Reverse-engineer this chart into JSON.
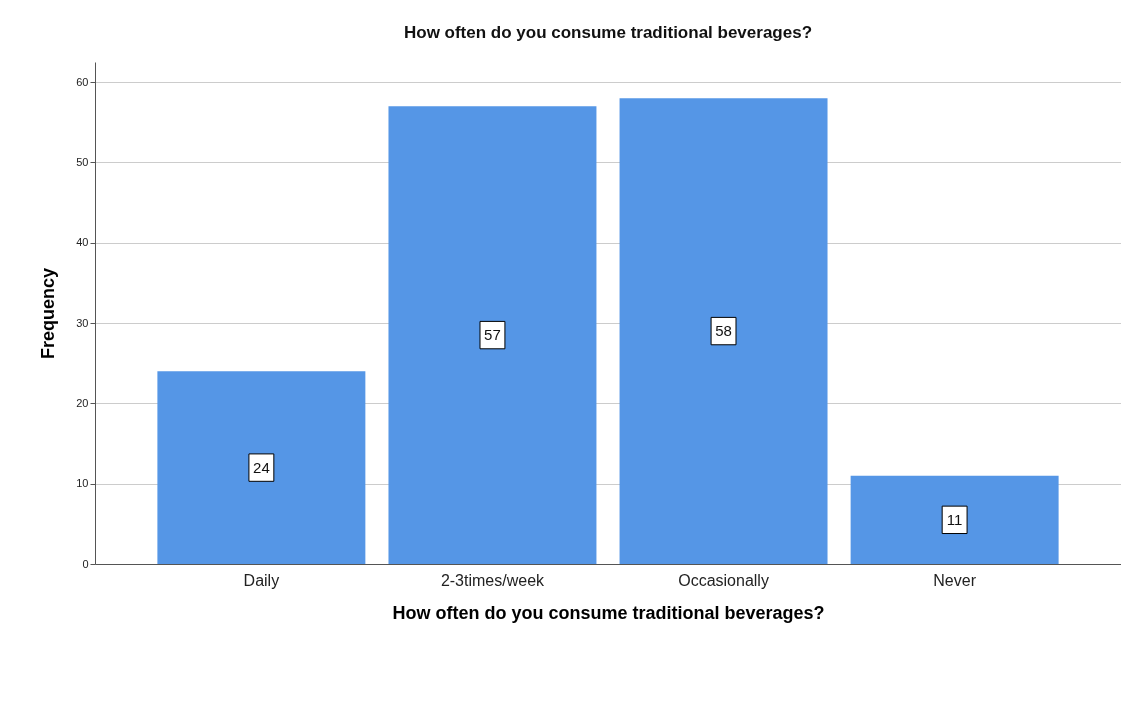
{
  "chart_data": {
    "type": "bar",
    "title": "How often do you consume traditional beverages?",
    "xlabel": "How often do you consume traditional beverages?",
    "ylabel": "Frequency",
    "categories": [
      "Daily",
      "2-3times/week",
      "Occasionally",
      "Never"
    ],
    "values": [
      24,
      57,
      58,
      11
    ],
    "color": "#5596e6",
    "ylim": [
      0,
      62.5
    ],
    "yticks": [
      0,
      10,
      20,
      30,
      40,
      50,
      60
    ],
    "grid": "y",
    "data_labels": true
  }
}
